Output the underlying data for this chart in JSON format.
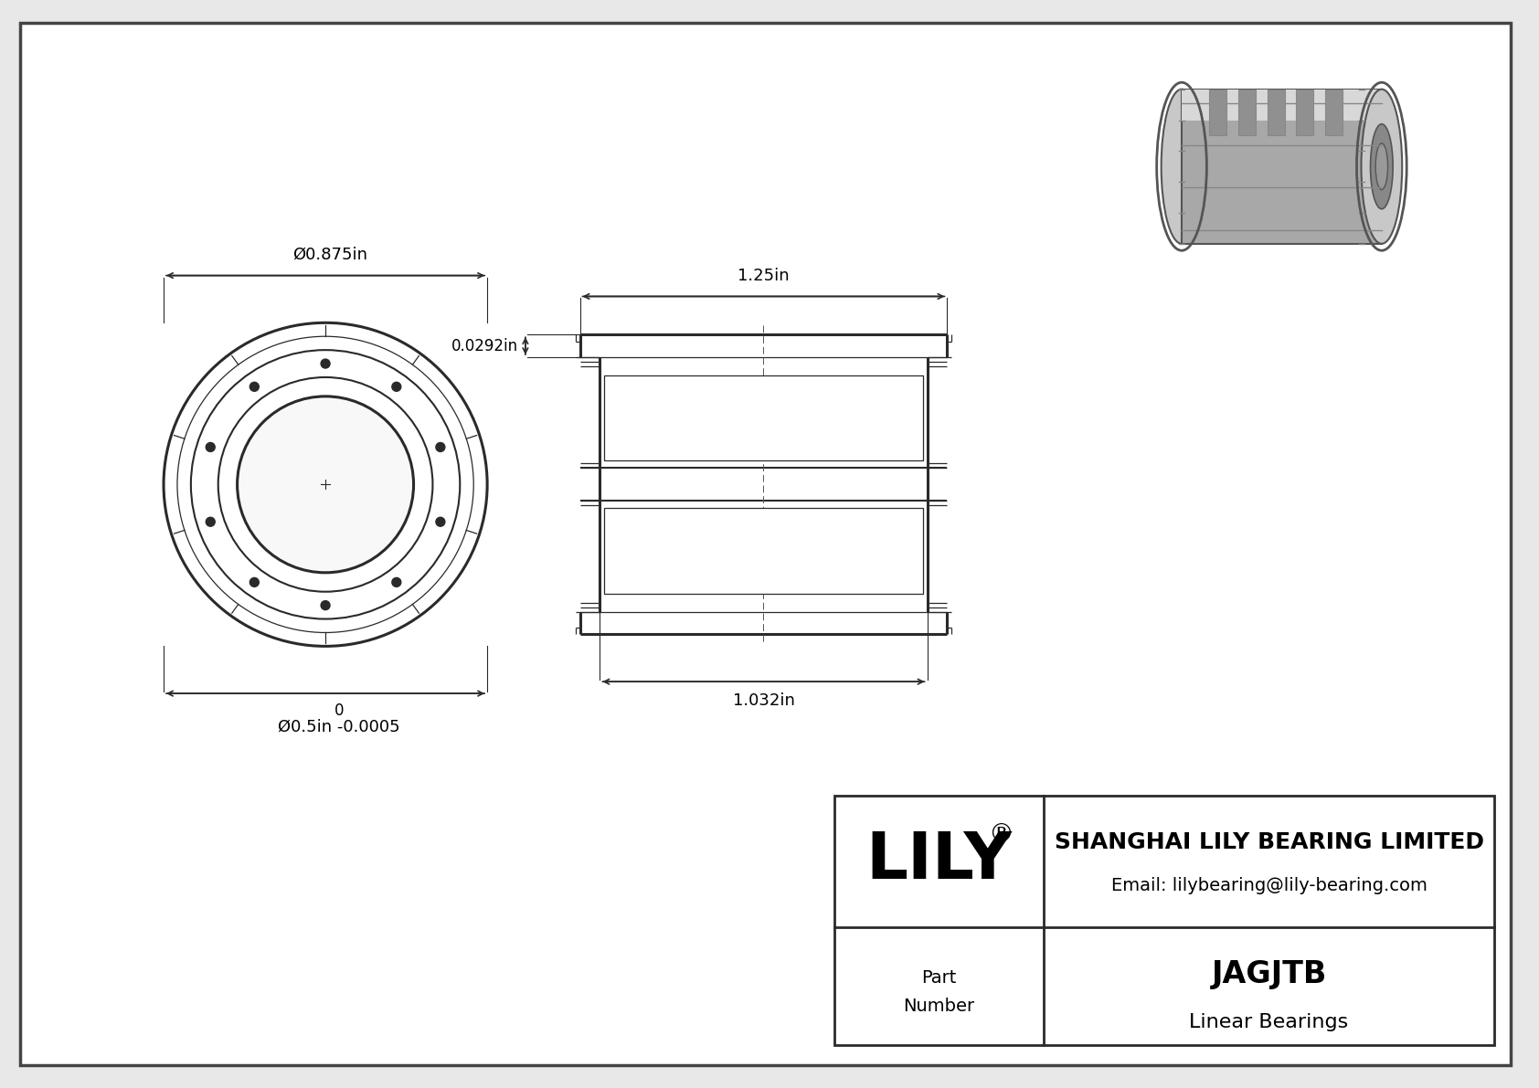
{
  "bg_color": "#e8e8e8",
  "inner_bg": "#ffffff",
  "line_color": "#2a2a2a",
  "dim_color": "#2a2a2a",
  "title_company": "SHANGHAI LILY BEARING LIMITED",
  "title_email": "Email: lilybearing@lily-bearing.com",
  "part_label": "Part\nNumber",
  "part_name": "JAGJTB",
  "part_type": "Linear Bearings",
  "logo_text": "LILY",
  "logo_reg": "®",
  "dim_outer_d": "Ø0.875in",
  "dim_inner_d": "Ø0.5in -0.0005",
  "dim_inner_d2": "0",
  "dim_length": "1.25in",
  "dim_sub_length": "1.032in",
  "dim_groove": "0.0292in",
  "border_color": "#555555",
  "table_border": "#2a2a2a"
}
